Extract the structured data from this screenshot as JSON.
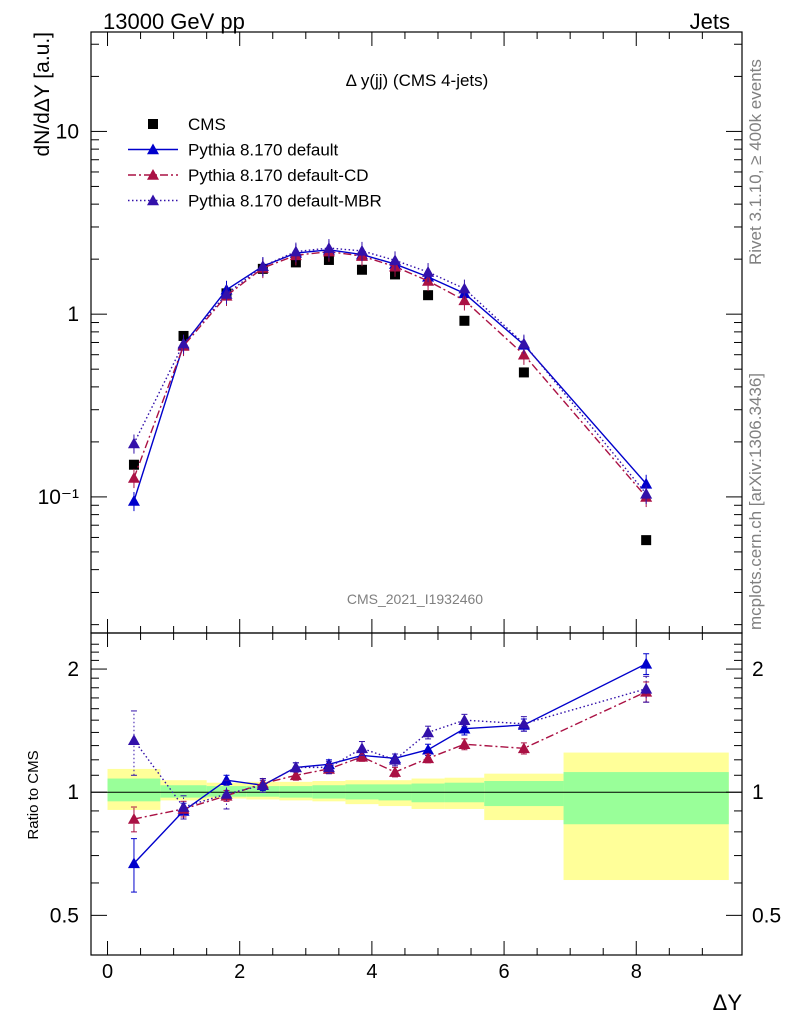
{
  "header": {
    "left": "13000 GeV pp",
    "right": "Jets"
  },
  "side_labels": {
    "top": "Rivet 3.1.10, ≥ 400k events",
    "bottom": "mcplots.cern.ch [arXiv:1306.3436]"
  },
  "watermark": "CMS_2021_I1932460",
  "chart_data": [
    {
      "type": "scatter",
      "title": "Δ y(jj) (CMS 4-jets)",
      "ylabel": "dN/dΔY [a.u.]",
      "yscale": "log",
      "xlim": [
        -0.25,
        9.6
      ],
      "ylim": [
        0.018,
        35
      ],
      "y_ticks": [
        {
          "value": 0.1,
          "label": "10⁻¹"
        },
        {
          "value": 1,
          "label": "1"
        },
        {
          "value": 10,
          "label": "10"
        }
      ],
      "legend_position": "top-left",
      "series": [
        {
          "name": "CMS",
          "color": "#000000",
          "marker": "square",
          "x": [
            0.4,
            1.15,
            1.8,
            2.35,
            2.85,
            3.35,
            3.85,
            4.35,
            4.85,
            5.4,
            6.3,
            8.15
          ],
          "y": [
            0.15,
            0.76,
            1.3,
            1.77,
            1.92,
            1.98,
            1.75,
            1.65,
            1.27,
            0.92,
            0.48,
            0.058
          ]
        },
        {
          "name": "Pythia 8.170 default",
          "color": "#0000cc",
          "line": "solid",
          "marker": "triangle",
          "x": [
            0.4,
            1.15,
            1.8,
            2.35,
            2.85,
            3.35,
            3.85,
            4.35,
            4.85,
            5.4,
            6.3,
            8.15
          ],
          "y": [
            0.095,
            0.68,
            1.36,
            1.83,
            2.16,
            2.25,
            2.12,
            1.88,
            1.6,
            1.3,
            0.68,
            0.118
          ]
        },
        {
          "name": "Pythia 8.170 default-CD",
          "color": "#aa1144",
          "line": "dashdot",
          "marker": "triangle",
          "x": [
            0.4,
            1.15,
            1.8,
            2.35,
            2.85,
            3.35,
            3.85,
            4.35,
            4.85,
            5.4,
            6.3,
            8.15
          ],
          "y": [
            0.127,
            0.67,
            1.26,
            1.79,
            2.1,
            2.2,
            2.08,
            1.82,
            1.52,
            1.19,
            0.6,
            0.1
          ]
        },
        {
          "name": "Pythia 8.170 default-MBR",
          "color": "#3311aa",
          "line": "dotted",
          "marker": "triangle",
          "x": [
            0.4,
            1.15,
            1.8,
            2.35,
            2.85,
            3.35,
            3.85,
            4.35,
            4.85,
            5.4,
            6.3,
            8.15
          ],
          "y": [
            0.196,
            0.69,
            1.29,
            1.83,
            2.2,
            2.3,
            2.22,
            1.97,
            1.7,
            1.38,
            0.69,
            0.104
          ]
        }
      ]
    },
    {
      "type": "line",
      "ylabel": "Ratio to CMS",
      "xlabel": "ΔY",
      "yscale": "log",
      "xlim": [
        -0.25,
        9.6
      ],
      "ylim": [
        0.4,
        2.45
      ],
      "x_ticks": [
        0,
        2,
        4,
        6,
        8
      ],
      "y_ticks": [
        0.5,
        1,
        2
      ],
      "bands": {
        "edges": [
          0,
          0.8,
          1.5,
          2.1,
          2.6,
          3.1,
          3.6,
          4.1,
          4.6,
          5.1,
          5.7,
          6.9,
          9.4
        ],
        "inner_color": "#99ff99",
        "outer_color": "#ffff99",
        "inner": [
          [
            0.95,
            1.08
          ],
          [
            0.97,
            1.04
          ],
          [
            0.975,
            1.035
          ],
          [
            0.975,
            1.035
          ],
          [
            0.97,
            1.035
          ],
          [
            0.965,
            1.04
          ],
          [
            0.96,
            1.045
          ],
          [
            0.955,
            1.045
          ],
          [
            0.945,
            1.05
          ],
          [
            0.945,
            1.055
          ],
          [
            0.925,
            1.065
          ],
          [
            0.835,
            1.12
          ]
        ],
        "outer": [
          [
            0.905,
            1.14
          ],
          [
            0.955,
            1.07
          ],
          [
            0.965,
            1.055
          ],
          [
            0.96,
            1.06
          ],
          [
            0.955,
            1.06
          ],
          [
            0.95,
            1.065
          ],
          [
            0.935,
            1.07
          ],
          [
            0.925,
            1.07
          ],
          [
            0.91,
            1.08
          ],
          [
            0.91,
            1.085
          ],
          [
            0.855,
            1.11
          ],
          [
            0.61,
            1.25
          ]
        ]
      },
      "series": [
        {
          "name": "Pythia 8.170 default",
          "color": "#0000cc",
          "x": [
            0.4,
            1.15,
            1.8,
            2.35,
            2.85,
            3.35,
            3.85,
            4.35,
            4.85,
            5.4,
            6.3,
            8.15
          ],
          "y": [
            0.67,
            0.9,
            1.07,
            1.04,
            1.15,
            1.17,
            1.23,
            1.21,
            1.27,
            1.43,
            1.46,
            2.06
          ],
          "err": [
            0.1,
            0.04,
            0.03,
            0.03,
            0.03,
            0.03,
            0.03,
            0.03,
            0.04,
            0.05,
            0.05,
            0.12
          ]
        },
        {
          "name": "Pythia 8.170 default-CD",
          "color": "#aa1144",
          "x": [
            0.4,
            1.15,
            1.8,
            2.35,
            2.85,
            3.35,
            3.85,
            4.35,
            4.85,
            5.4,
            6.3,
            8.15
          ],
          "y": [
            0.86,
            0.91,
            0.98,
            1.05,
            1.1,
            1.14,
            1.22,
            1.12,
            1.21,
            1.31,
            1.28,
            1.76
          ],
          "err": [
            0.06,
            0.04,
            0.03,
            0.03,
            0.03,
            0.03,
            0.03,
            0.03,
            0.03,
            0.04,
            0.04,
            0.1
          ]
        },
        {
          "name": "Pythia 8.170 default-MBR",
          "color": "#3311aa",
          "x": [
            0.4,
            1.15,
            1.8,
            2.35,
            2.85,
            3.35,
            3.85,
            4.35,
            4.85,
            5.4,
            6.3,
            8.15
          ],
          "y": [
            1.34,
            0.92,
            0.99,
            1.04,
            1.15,
            1.15,
            1.28,
            1.2,
            1.4,
            1.5,
            1.47,
            1.79
          ],
          "err": [
            0.24,
            0.06,
            0.08,
            0.04,
            0.03,
            0.04,
            0.05,
            0.04,
            0.05,
            0.05,
            0.06,
            0.13
          ]
        }
      ]
    }
  ]
}
